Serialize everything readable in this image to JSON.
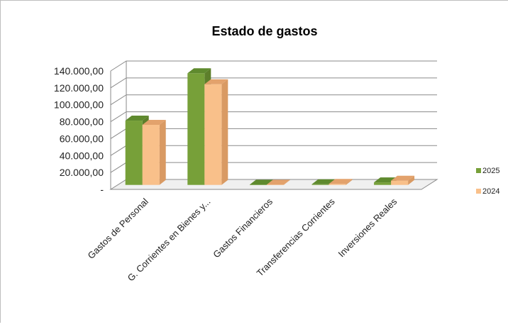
{
  "chart_data": {
    "type": "bar",
    "title": "Estado de gastos",
    "xlabel": "",
    "ylabel": "",
    "categories": [
      "Gastos de Personal",
      "G. Corrientes en Bienes y...",
      "Gastos Financieros",
      "Transferencias Corrientes",
      "Inversiones Reales"
    ],
    "series": [
      {
        "name": "2025",
        "values": [
          76000,
          132000,
          300,
          800,
          3000
        ]
      },
      {
        "name": "2024",
        "values": [
          71000,
          119000,
          300,
          1200,
          5000
        ]
      }
    ],
    "ylim": [
      0,
      140000
    ],
    "yticks": [
      "-",
      "20.000,00",
      "40.000,00",
      "60.000,00",
      "80.000,00",
      "100.000,00",
      "120.000,00",
      "140.000,00"
    ],
    "ytick_values": [
      0,
      20000,
      40000,
      60000,
      80000,
      100000,
      120000,
      140000
    ],
    "grid": true,
    "legend_position": "right",
    "colors": {
      "series": [
        "#77a039",
        "#f9c08a"
      ],
      "series_side": [
        "#5d7f2b",
        "#d99a63"
      ],
      "series_top": [
        "#5f8a2e",
        "#e3a26c"
      ],
      "grid": "#8a8a8a",
      "floor": "#f0f0f0"
    }
  }
}
